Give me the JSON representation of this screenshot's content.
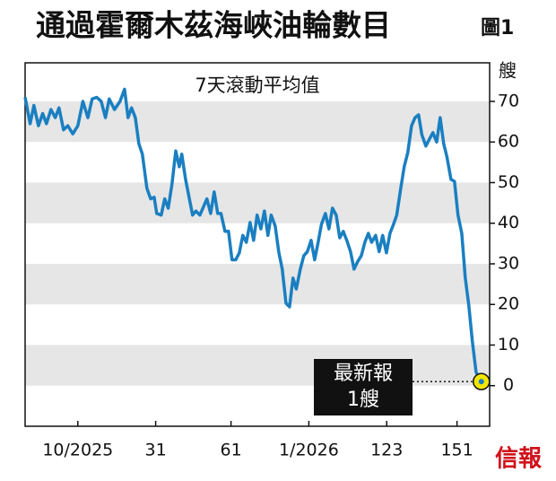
{
  "chart_data": {
    "type": "line",
    "title": "通過霍爾木茲海峽油輪數目",
    "figure_label": "圖1",
    "subtitle": "7天滾動平均值",
    "y_unit": "艘",
    "logo": "信報",
    "annotation": [
      "最新報",
      "1艘"
    ],
    "grid": "bands",
    "x": [
      -21,
      -19,
      -17.5,
      -15.7,
      -14,
      -12.5,
      -10.7,
      -9,
      -7.5,
      -5.7,
      -4,
      -2,
      0,
      2,
      4,
      5.7,
      7.5,
      9.3,
      11,
      12.5,
      14.6,
      16.8,
      18.6,
      20,
      21.4,
      22.9,
      24.3,
      25.7,
      27.5,
      29,
      30.4,
      31.4,
      33.2,
      34.6,
      36,
      37.5,
      39,
      40.4,
      41.4,
      42.9,
      44.3,
      45.7,
      47,
      48.6,
      50,
      51.4,
      52.9,
      54.3,
      55.7,
      57,
      58.6,
      60,
      61.4,
      62.9,
      64.3,
      65.7,
      67.1,
      68.6,
      70,
      71.4,
      72.9,
      74.3,
      75.7,
      77,
      78.6,
      80,
      81.4,
      82.9,
      84.3,
      85.7,
      87,
      88.6,
      90,
      91.4,
      92.9,
      94.3,
      95.7,
      97,
      98.6,
      100,
      101.4,
      102.9,
      104.3,
      105.7,
      107.1,
      108.6,
      110,
      111.4,
      112.9,
      114.3,
      115.7,
      117,
      118.6,
      120,
      121.4,
      122.9,
      124.3,
      125.7,
      127,
      128.6,
      130,
      131.4,
      132.9,
      134.3,
      135.7,
      137,
      138.6,
      140,
      141.4,
      142.9,
      144.3,
      145.7,
      147,
      148.6,
      150,
      151.4,
      152.9,
      154.3,
      155.7,
      157.1,
      158.6,
      160.7
    ],
    "series": [
      {
        "color": "#1a7fc1",
        "values": [
          71,
          64.5,
          69,
          64,
          67,
          64.5,
          68,
          66,
          68.4,
          63,
          64,
          62,
          64,
          70,
          66,
          70.6,
          71,
          70,
          66,
          70.6,
          68,
          70,
          73,
          66,
          68.4,
          66,
          59.6,
          57,
          48.6,
          46,
          46.4,
          42.4,
          42,
          46,
          43.7,
          49.7,
          57.8,
          53.9,
          57,
          50.8,
          46.4,
          42,
          43,
          42,
          44,
          46,
          42.4,
          47.7,
          42.4,
          42.4,
          38,
          38,
          31,
          31,
          32.7,
          37,
          35.3,
          40.2,
          35.8,
          42,
          38.6,
          43,
          37,
          42,
          39.3,
          33,
          28.7,
          20.3,
          19.4,
          26.5,
          23.8,
          28.7,
          32,
          33,
          35.8,
          31,
          35.3,
          39.7,
          42.4,
          38.6,
          43.7,
          42,
          36.4,
          38,
          35.8,
          33,
          28.7,
          30.5,
          32,
          35.3,
          37.5,
          35.3,
          37,
          33,
          37,
          32.7,
          37.5,
          39.7,
          42,
          48.6,
          54,
          57.4,
          64,
          66,
          66.7,
          61.8,
          59,
          60.7,
          62.3,
          60,
          66,
          59.6,
          56.3,
          50.8,
          50.3,
          42,
          37.5,
          26.5,
          19.8,
          11,
          3.3,
          1
        ]
      }
    ],
    "marker_color": "#f2e600",
    "xlim": [
      -21,
      164
    ],
    "xticks": [
      {
        "value": 0,
        "label": "10/2025"
      },
      31,
      61,
      {
        "value": 92,
        "label": "1/2026"
      },
      123,
      151
    ],
    "ylim": [
      -10,
      79.5
    ],
    "yticks": [
      0,
      10,
      20,
      30,
      40,
      50,
      60,
      70
    ]
  }
}
